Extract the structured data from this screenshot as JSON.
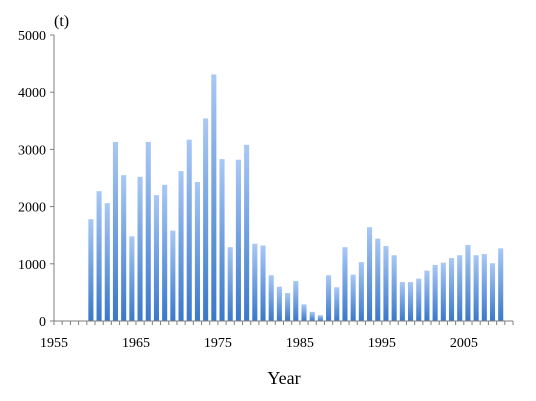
{
  "chart_data": {
    "type": "bar",
    "title": "",
    "xlabel": "Year",
    "ylabel": "(t)",
    "ylim": [
      0,
      5000
    ],
    "xlim": [
      1955,
      2010
    ],
    "yticks": [
      "0",
      "1000",
      "2000",
      "3000",
      "4000",
      "5000"
    ],
    "xticks": [
      "1955",
      "1965",
      "1975",
      "1985",
      "1995",
      "2005"
    ],
    "grid": false,
    "legend": "none",
    "colors": {
      "bar_top": "#a9c8f5",
      "bar_bottom": "#3a78c9",
      "axis": "#7f7f7f"
    },
    "x": [
      1959,
      1960,
      1961,
      1962,
      1963,
      1964,
      1965,
      1966,
      1967,
      1968,
      1969,
      1970,
      1971,
      1972,
      1973,
      1974,
      1975,
      1976,
      1977,
      1978,
      1979,
      1980,
      1981,
      1982,
      1983,
      1984,
      1985,
      1986,
      1987,
      1988,
      1989,
      1990,
      1991,
      1992,
      1993,
      1994,
      1995,
      1996,
      1997,
      1998,
      1999,
      2000,
      2001,
      2002,
      2003,
      2004,
      2005,
      2006,
      2007,
      2008,
      2009
    ],
    "values": [
      1780,
      2270,
      2060,
      3130,
      2550,
      1480,
      2520,
      3130,
      2200,
      2380,
      1580,
      2620,
      3170,
      2430,
      3540,
      4310,
      2830,
      1290,
      2820,
      3080,
      1350,
      1320,
      800,
      600,
      490,
      700,
      290,
      160,
      100,
      800,
      590,
      1290,
      810,
      1030,
      1640,
      1440,
      1310,
      1150,
      680,
      680,
      740,
      880,
      980,
      1020,
      1100,
      1150,
      1330,
      1150,
      1170,
      1010,
      1270
    ]
  }
}
